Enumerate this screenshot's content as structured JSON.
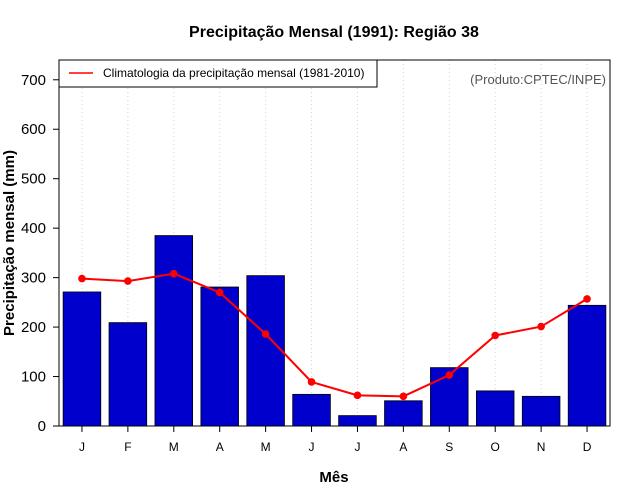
{
  "chart_data": {
    "type": "bar",
    "title": "Precipitação Mensal (1991): Região 38",
    "xlabel": "Mês",
    "ylabel": "Precipitação mensal (mm)",
    "categories": [
      "J",
      "F",
      "M",
      "A",
      "M",
      "J",
      "J",
      "A",
      "S",
      "O",
      "N",
      "D"
    ],
    "ylim": [
      0,
      740
    ],
    "yticks": [
      0,
      100,
      200,
      300,
      400,
      500,
      600,
      700
    ],
    "series": [
      {
        "name": "Precipitação mensal (1991)",
        "kind": "bar",
        "color": "#0000CD",
        "values": [
          271,
          209,
          385,
          281,
          304,
          64,
          21,
          51,
          118,
          71,
          60,
          244
        ]
      },
      {
        "name": "Climatologia da precipitação mensal (1981-2010)",
        "kind": "line",
        "color": "#FF0000",
        "values": [
          298,
          293,
          308,
          270,
          186,
          89,
          62,
          60,
          103,
          183,
          201,
          257
        ]
      }
    ],
    "legend": {
      "position": "top-left",
      "label": "Climatologia da precipitação mensal (1981-2010)"
    },
    "annotation": "(Produto:CPTEC/INPE)",
    "grid": "vertical-dotted"
  }
}
